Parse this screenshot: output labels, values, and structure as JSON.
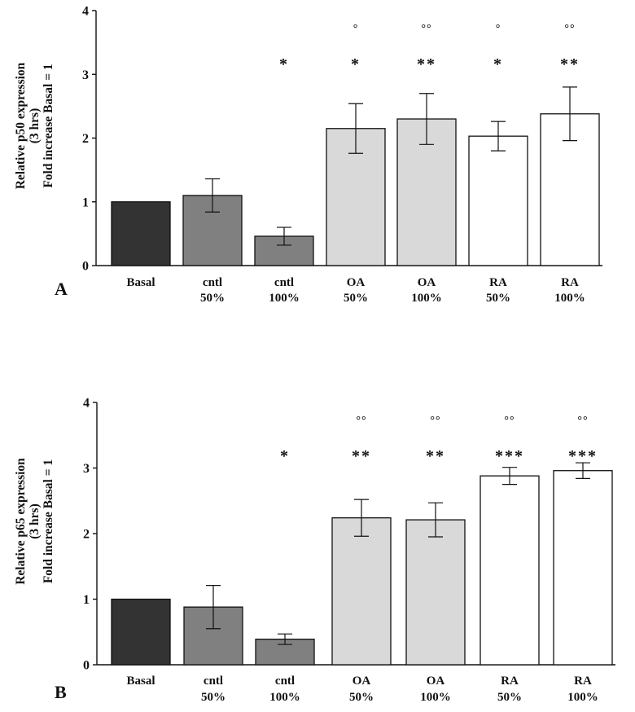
{
  "chart_data": [
    {
      "type": "bar",
      "panel_label": "A",
      "ylabel_lines": [
        "Relative p50 expression",
        "(3 hrs)",
        "Fold increase Basal = 1"
      ],
      "ylim": [
        0,
        4
      ],
      "yticks": [
        "0",
        "1",
        "2",
        "3",
        "4"
      ],
      "categories": [
        {
          "line1": "Basal",
          "line2": ""
        },
        {
          "line1": "cntl",
          "line2": "50%"
        },
        {
          "line1": "cntl",
          "line2": "100%"
        },
        {
          "line1": "OA",
          "line2": "50%"
        },
        {
          "line1": "OA",
          "line2": "100%"
        },
        {
          "line1": "RA",
          "line2": "50%"
        },
        {
          "line1": "RA",
          "line2": "100%"
        }
      ],
      "values": [
        1.0,
        1.1,
        0.46,
        2.15,
        2.3,
        2.03,
        2.38
      ],
      "errors": [
        0,
        0.26,
        0.14,
        0.39,
        0.4,
        0.23,
        0.42
      ],
      "bar_colors": [
        "#333333",
        "#808080",
        "#808080",
        "#d9d9d9",
        "#d9d9d9",
        "#ffffff",
        "#ffffff"
      ],
      "stars": [
        "",
        "",
        "*",
        "*",
        "**",
        "*",
        "**"
      ],
      "circles": [
        "",
        "",
        "",
        "°",
        "°°",
        "°",
        "°°"
      ]
    },
    {
      "type": "bar",
      "panel_label": "B",
      "ylabel_lines": [
        "Relative p65 expression",
        "(3 hrs)",
        "Fold increase Basal = 1"
      ],
      "ylim": [
        0,
        4
      ],
      "yticks": [
        "0",
        "1",
        "2",
        "3",
        "4"
      ],
      "categories": [
        {
          "line1": "Basal",
          "line2": ""
        },
        {
          "line1": "cntl",
          "line2": "50%"
        },
        {
          "line1": "cntl",
          "line2": "100%"
        },
        {
          "line1": "OA",
          "line2": "50%"
        },
        {
          "line1": "OA",
          "line2": "100%"
        },
        {
          "line1": "RA",
          "line2": "50%"
        },
        {
          "line1": "RA",
          "line2": "100%"
        }
      ],
      "values": [
        1.0,
        0.88,
        0.39,
        2.24,
        2.21,
        2.88,
        2.96
      ],
      "errors": [
        0,
        0.33,
        0.08,
        0.28,
        0.26,
        0.13,
        0.12
      ],
      "bar_colors": [
        "#333333",
        "#808080",
        "#808080",
        "#d9d9d9",
        "#d9d9d9",
        "#ffffff",
        "#ffffff"
      ],
      "stars": [
        "",
        "",
        "*",
        "**",
        "**",
        "***",
        "***"
      ],
      "circles": [
        "",
        "",
        "",
        "°°",
        "°°",
        "°°",
        "°°"
      ]
    }
  ]
}
